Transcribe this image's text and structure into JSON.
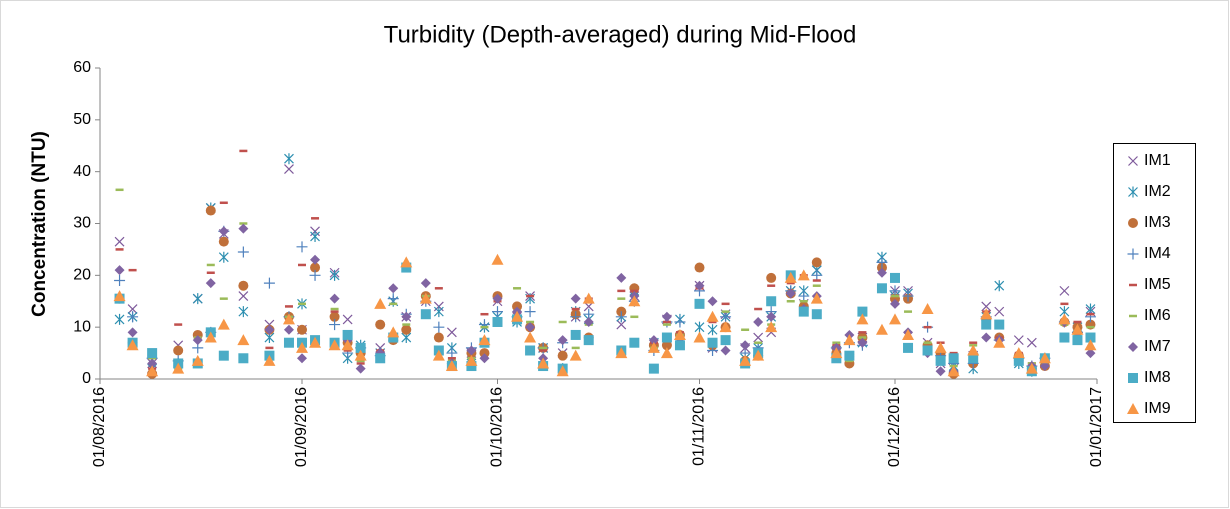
{
  "chart_data": {
    "type": "scatter",
    "title": "Turbidity (Depth-averaged) during Mid-Flood",
    "y_label": "Concentration (NTU)",
    "x": [
      "04/08/2016",
      "06/08/2016",
      "09/08/2016",
      "13/08/2016",
      "16/08/2016",
      "18/08/2016",
      "20/08/2016",
      "23/08/2016",
      "27/08/2016",
      "30/08/2016",
      "01/09/2016",
      "03/09/2016",
      "06/09/2016",
      "08/09/2016",
      "10/09/2016",
      "13/09/2016",
      "15/09/2016",
      "17/09/2016",
      "20/09/2016",
      "22/09/2016",
      "24/09/2016",
      "27/09/2016",
      "29/09/2016",
      "01/10/2016",
      "04/10/2016",
      "06/10/2016",
      "08/10/2016",
      "11/10/2016",
      "13/10/2016",
      "15/10/2016",
      "20/10/2016",
      "22/10/2016",
      "25/10/2016",
      "27/10/2016",
      "29/10/2016",
      "01/11/2016",
      "03/11/2016",
      "05/11/2016",
      "08/11/2016",
      "10/11/2016",
      "12/11/2016",
      "15/11/2016",
      "17/11/2016",
      "19/11/2016",
      "22/11/2016",
      "24/11/2016",
      "26/11/2016",
      "29/11/2016",
      "01/12/2016",
      "03/12/2016",
      "06/12/2016",
      "08/12/2016",
      "10/12/2016",
      "13/12/2016",
      "15/12/2016",
      "17/12/2016",
      "20/12/2016",
      "22/12/2016",
      "24/12/2016",
      "27/12/2016",
      "29/12/2016",
      "31/12/2016"
    ],
    "series": [
      {
        "name": "IM1",
        "color": "#7e5a9b",
        "marker": "x",
        "values": [
          26.5,
          13.5,
          3,
          6.5,
          15.5,
          33,
          28,
          16,
          10.5,
          40.5,
          9.5,
          28.5,
          20.5,
          11.5,
          6,
          6,
          15,
          12,
          15,
          14,
          9,
          5,
          10,
          15,
          12,
          16,
          6,
          5,
          12,
          14,
          10.5,
          16,
          6,
          11.5,
          8,
          18,
          6,
          12.5,
          6,
          8,
          9,
          17,
          14.5,
          21,
          5,
          3.5,
          8,
          22,
          17,
          17,
          7,
          3,
          2,
          4.5,
          14,
          13,
          7.5,
          7,
          3,
          17,
          9.5,
          13
        ]
      },
      {
        "name": "IM2",
        "color": "#2d8fb0",
        "marker": "asterisk",
        "values": [
          11.5,
          12,
          2,
          3,
          15.5,
          33,
          23.5,
          13,
          8,
          42.5,
          14.5,
          27.5,
          20,
          4,
          6.5,
          5,
          15,
          8,
          15.5,
          13,
          6,
          3,
          10,
          12,
          11,
          15.5,
          6,
          2,
          13,
          11.5,
          12,
          17,
          7,
          7.5,
          11.5,
          10,
          9.5,
          12,
          4,
          6,
          12,
          17,
          17,
          21,
          5.5,
          4,
          7,
          23.5,
          16,
          16.5,
          5.5,
          4,
          2.5,
          2,
          12,
          18,
          3,
          1.5,
          3.5,
          13,
          10,
          13.5
        ]
      },
      {
        "name": "IM3",
        "color": "#c0703a",
        "marker": "circle",
        "values": [
          15.5,
          7,
          1,
          5.5,
          8.5,
          32.5,
          26.5,
          18,
          9.5,
          12,
          9.5,
          21.5,
          12,
          7,
          5,
          10.5,
          7.5,
          9.5,
          16,
          8,
          3,
          5,
          5,
          16,
          14,
          10,
          6,
          4.5,
          12.5,
          8,
          13,
          17.5,
          6.5,
          6.5,
          8.5,
          21.5,
          6.5,
          10,
          3.5,
          4.5,
          19.5,
          16.5,
          14,
          22.5,
          5,
          3,
          8,
          21.5,
          15.5,
          15.5,
          6.5,
          5,
          1,
          3,
          11.5,
          8,
          4.5,
          2,
          2.5,
          11,
          10,
          10.5
        ]
      },
      {
        "name": "IM4",
        "color": "#4f81bd",
        "marker": "plus",
        "values": [
          19,
          12,
          4,
          3.5,
          6,
          9,
          28.5,
          24.5,
          18.5,
          12,
          25.5,
          20,
          10.5,
          5,
          6,
          4.5,
          15.5,
          12.5,
          15,
          10,
          5,
          6,
          10.5,
          13,
          12,
          13,
          6,
          7,
          12,
          12.5,
          12,
          15,
          5.5,
          11,
          11,
          17,
          5.5,
          12,
          5,
          6,
          13,
          17,
          16,
          20,
          6,
          7,
          6.5,
          22.5,
          17,
          16,
          10,
          4.5,
          3,
          3,
          12,
          7.5,
          4,
          2.5,
          4,
          11,
          9,
          12
        ]
      },
      {
        "name": "IM5",
        "color": "#c0504d",
        "marker": "dash",
        "values": [
          25,
          21,
          2,
          10.5,
          8,
          20.5,
          34,
          44,
          6,
          14,
          22,
          31,
          13,
          5.5,
          3,
          5.5,
          17.5,
          12,
          16,
          17.5,
          4,
          4,
          12.5,
          15,
          13,
          16,
          5.5,
          2.5,
          13.5,
          15.5,
          17,
          17,
          7,
          11,
          9,
          17.5,
          11,
          14.5,
          6.5,
          13.5,
          18,
          18.5,
          20,
          19,
          6.5,
          4,
          9,
          17,
          14.5,
          9,
          10,
          7,
          5,
          7,
          13,
          8,
          5,
          3,
          4.5,
          14.5,
          11,
          12.5
        ]
      },
      {
        "name": "IM6",
        "color": "#9bbb59",
        "marker": "dash",
        "values": [
          36.5,
          7,
          4,
          2,
          8,
          22,
          15.5,
          30,
          5,
          12,
          14.5,
          23,
          13.5,
          9,
          3.5,
          5,
          14.5,
          10.5,
          16,
          5,
          3.5,
          4,
          10,
          15.5,
          17.5,
          11,
          6,
          11,
          6,
          10.5,
          15.5,
          12,
          6,
          10.5,
          8.5,
          15,
          15,
          13,
          9.5,
          7,
          10.5,
          15,
          15,
          18,
          7,
          3.5,
          8,
          18,
          16,
          13,
          7,
          4,
          2.5,
          6.5,
          8,
          7.5,
          4,
          3,
          3.5,
          10.5,
          8.5,
          10
        ]
      },
      {
        "name": "IM7",
        "color": "#8064a2",
        "marker": "diamond",
        "values": [
          21,
          9,
          3,
          2.5,
          7.5,
          18.5,
          28.5,
          29,
          9.5,
          9.5,
          4,
          23,
          15.5,
          7.5,
          2,
          5,
          17.5,
          12,
          18.5,
          5,
          3,
          5.5,
          4,
          15.5,
          13,
          10,
          4,
          7.5,
          15.5,
          11,
          19.5,
          16,
          7.5,
          12,
          7,
          18,
          15,
          5.5,
          6.5,
          11,
          12,
          16.5,
          13.5,
          16,
          6,
          8.5,
          7,
          20.5,
          14.5,
          9,
          5,
          1.5,
          1.5,
          5,
          8,
          7.5,
          3.5,
          2.5,
          2.5,
          11,
          9,
          5
        ]
      },
      {
        "name": "IM8",
        "color": "#4bacc6",
        "marker": "square",
        "values": [
          15.5,
          7,
          5,
          3,
          3,
          9,
          4.5,
          4,
          4.5,
          7,
          7,
          7.5,
          7,
          8.5,
          6,
          4,
          8,
          21.5,
          12.5,
          5.5,
          2.5,
          2.5,
          7,
          11,
          11.5,
          5.5,
          2.5,
          2,
          8.5,
          7.5,
          5.5,
          7,
          2,
          8,
          6.5,
          14.5,
          7,
          7.5,
          3,
          5,
          15,
          20,
          13,
          12.5,
          4,
          4.5,
          13,
          17.5,
          19.5,
          6,
          5.5,
          3.5,
          4,
          4,
          10.5,
          10.5,
          3.5,
          1.5,
          4,
          8,
          7.5,
          8
        ]
      },
      {
        "name": "IM9",
        "color": "#f79646",
        "marker": "triangle",
        "values": [
          16,
          6.5,
          1.5,
          2,
          3.5,
          8,
          10.5,
          7.5,
          3.5,
          11.5,
          6,
          7,
          6.5,
          6.5,
          4.5,
          14.5,
          9,
          22.5,
          15.5,
          4.5,
          2.5,
          3.5,
          7.5,
          23,
          12,
          8,
          3,
          1.5,
          4.5,
          15.5,
          5,
          15,
          6,
          5,
          8.5,
          8,
          12,
          10,
          3.5,
          4.5,
          10,
          19.5,
          20,
          15.5,
          5,
          7.5,
          11.5,
          9.5,
          11.5,
          8.5,
          13.5,
          6,
          1.5,
          5.5,
          12.5,
          7,
          5,
          2,
          4,
          11.5,
          9.5,
          6.5
        ]
      }
    ],
    "xlim": [
      "01/08/2016",
      "01/01/2017"
    ],
    "xticks": [
      "01/08/2016",
      "01/09/2016",
      "01/10/2016",
      "01/11/2016",
      "01/12/2016",
      "01/01/2017"
    ],
    "ylim": [
      0,
      60
    ],
    "yticks": [
      0,
      10,
      20,
      30,
      40,
      50,
      60
    ],
    "grid": false,
    "legend": "right"
  }
}
